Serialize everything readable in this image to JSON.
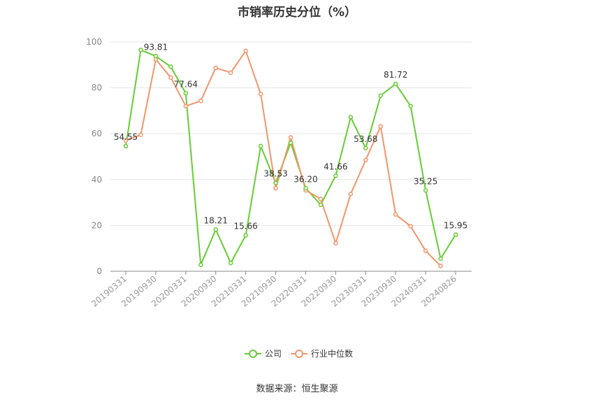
{
  "chart_data": {
    "type": "line",
    "title": "市销率历史分位（%）",
    "ylim": [
      0,
      100
    ],
    "yticks": [
      0,
      20,
      40,
      60,
      80,
      100
    ],
    "x": [
      "20190331",
      "20190630",
      "20190930",
      "20191231",
      "20200331",
      "20200630",
      "20200930",
      "20201231",
      "20210331",
      "20210630",
      "20210930",
      "20211231",
      "20220331",
      "20220630",
      "20220930",
      "20221231",
      "20230331",
      "20230630",
      "20230930",
      "20231231",
      "20240331",
      "20240630",
      "20240826"
    ],
    "x_tick_labels": [
      "20190331",
      "20190930",
      "20200331",
      "20200930",
      "20210331",
      "20210930",
      "20220331",
      "20220930",
      "20230331",
      "20230930",
      "20240331",
      "20240826"
    ],
    "x_tick_indices": [
      0,
      2,
      4,
      6,
      8,
      10,
      12,
      14,
      16,
      18,
      20,
      22
    ],
    "grid": true,
    "legend_position": "bottom",
    "series": [
      {
        "name": "公司",
        "color": "#66cc33",
        "values": [
          54.55,
          96.5,
          93.81,
          89.2,
          77.64,
          2.8,
          18.21,
          3.6,
          15.66,
          54.6,
          38.53,
          56.0,
          36.2,
          29.0,
          41.66,
          67.2,
          53.68,
          76.6,
          81.72,
          72.0,
          35.25,
          5.5,
          15.95
        ],
        "labels": {
          "0": "54.55",
          "2": "93.81",
          "4": "77.64",
          "6": "18.21",
          "8": "15.66",
          "10": "38.53",
          "12": "36.20",
          "14": "41.66",
          "16": "53.68",
          "18": "81.72",
          "20": "35.25",
          "22": "15.95"
        }
      },
      {
        "name": "行业中位数",
        "color": "#f4956a",
        "values": [
          57.0,
          59.5,
          92.4,
          84.5,
          72.0,
          74.3,
          88.7,
          86.6,
          96.1,
          77.3,
          36.2,
          58.4,
          35.3,
          31.5,
          12.2,
          33.7,
          48.5,
          63.2,
          24.8,
          19.6,
          8.9,
          2.3,
          null
        ]
      }
    ]
  },
  "footer": {
    "source_label": "数据来源：",
    "source_name": "恒生聚源"
  }
}
